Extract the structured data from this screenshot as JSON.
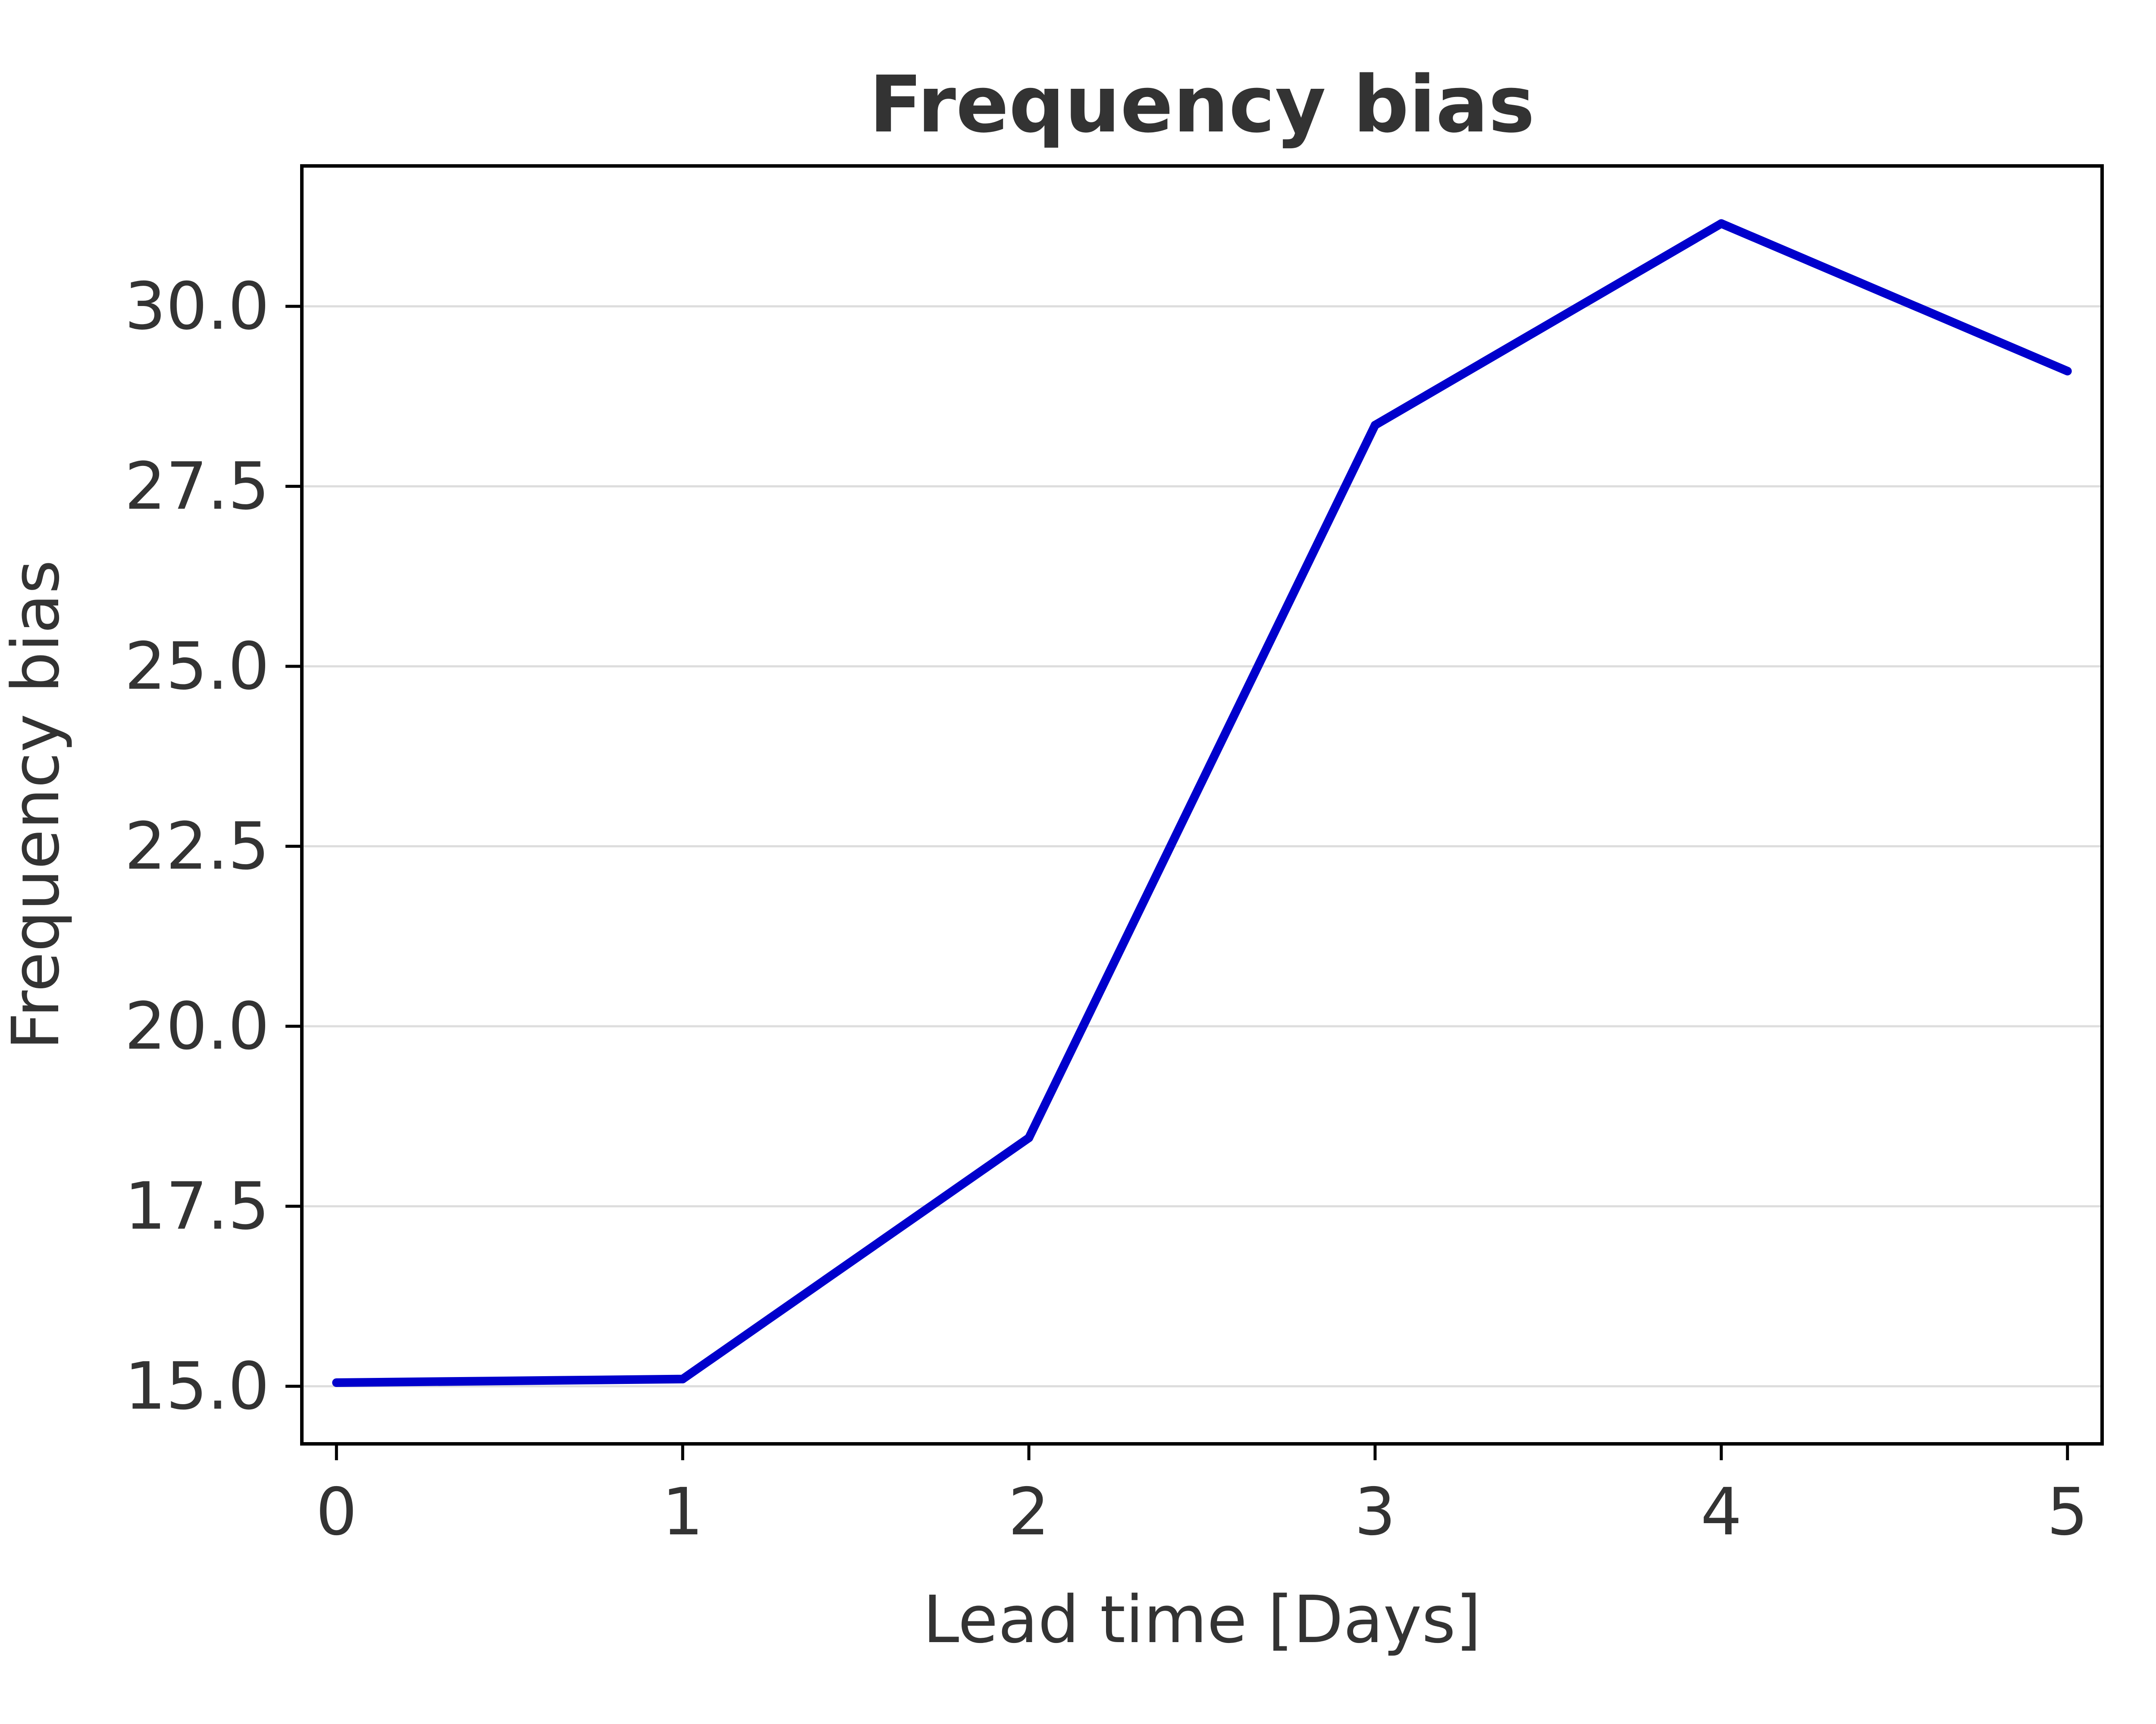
{
  "chart_data": {
    "type": "line",
    "title": "Frequency bias",
    "xlabel": "Lead time [Days]",
    "ylabel": "Frequency bias",
    "x": [
      0,
      1,
      2,
      3,
      4,
      5
    ],
    "series": [
      {
        "values": [
          15.05,
          15.1,
          18.45,
          28.35,
          31.15,
          29.1
        ]
      }
    ],
    "xlim": [
      -0.1,
      5.1
    ],
    "ylim": [
      14.2,
      31.95
    ],
    "xticks": [
      "0",
      "1",
      "2",
      "3",
      "4",
      "5"
    ],
    "yticks": [
      "15.0",
      "17.5",
      "20.0",
      "22.5",
      "25.0",
      "27.5",
      "30.0"
    ],
    "grid": "horizontal",
    "legend": "none",
    "colors": {
      "line": "#0000cc",
      "grid": "#dddddd",
      "axis": "#000000",
      "text": "#333333"
    }
  }
}
